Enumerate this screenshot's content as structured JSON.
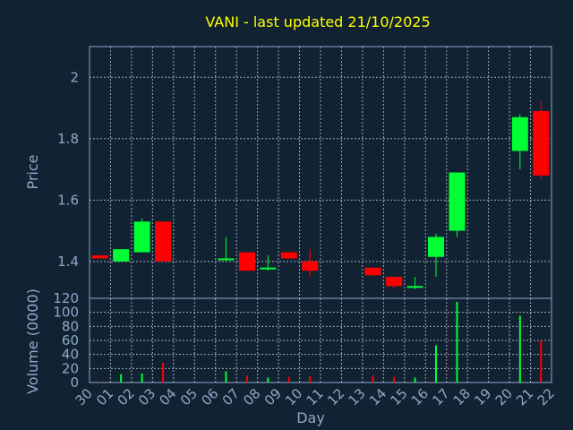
{
  "chart_data": [
    {
      "type": "candlestick",
      "title": "VANI - last updated 21/10/2025",
      "ylabel": "Price",
      "ylim": [
        1.28,
        2.1
      ],
      "y_ticks": [
        1.4,
        1.6,
        1.8,
        2.0
      ],
      "y_tick_labels": [
        "1.4",
        "1.6",
        "1.8",
        "2"
      ],
      "categories": [
        "30",
        "01",
        "02",
        "03",
        "04",
        "05",
        "06",
        "07",
        "08",
        "09",
        "10",
        "11",
        "12",
        "13",
        "14",
        "15",
        "16",
        "17",
        "18",
        "19",
        "20",
        "21",
        "22"
      ],
      "candles": [
        {
          "day": "30",
          "open": 1.42,
          "close": 1.41,
          "high": 1.42,
          "low": 1.41
        },
        {
          "day": "01",
          "open": 1.4,
          "close": 1.44,
          "high": 1.44,
          "low": 1.4
        },
        {
          "day": "02",
          "open": 1.43,
          "close": 1.53,
          "high": 1.54,
          "low": 1.43
        },
        {
          "day": "03",
          "open": 1.53,
          "close": 1.4,
          "high": 1.53,
          "low": 1.4
        },
        {
          "day": "06",
          "open": 1.41,
          "close": 1.41,
          "high": 1.48,
          "low": 1.4
        },
        {
          "day": "07",
          "open": 1.43,
          "close": 1.37,
          "high": 1.43,
          "low": 1.37
        },
        {
          "day": "08",
          "open": 1.38,
          "close": 1.38,
          "high": 1.42,
          "low": 1.37
        },
        {
          "day": "09",
          "open": 1.43,
          "close": 1.41,
          "high": 1.43,
          "low": 1.41
        },
        {
          "day": "10",
          "open": 1.4,
          "close": 1.37,
          "high": 1.44,
          "low": 1.35
        },
        {
          "day": "13",
          "open": 1.38,
          "close": 1.355,
          "high": 1.38,
          "low": 1.355
        },
        {
          "day": "14",
          "open": 1.35,
          "close": 1.32,
          "high": 1.35,
          "low": 1.31
        },
        {
          "day": "15",
          "open": 1.32,
          "close": 1.32,
          "high": 1.35,
          "low": 1.31
        },
        {
          "day": "16",
          "open": 1.415,
          "close": 1.48,
          "high": 1.49,
          "low": 1.35
        },
        {
          "day": "17",
          "open": 1.5,
          "close": 1.69,
          "high": 1.69,
          "low": 1.48
        },
        {
          "day": "20",
          "open": 1.76,
          "close": 1.87,
          "high": 1.88,
          "low": 1.7
        },
        {
          "day": "21",
          "open": 1.89,
          "close": 1.68,
          "high": 1.92,
          "low": 1.67
        }
      ],
      "up_color": "#00ff33",
      "down_color": "#ff0000",
      "grid": true
    },
    {
      "type": "bar",
      "ylabel": "Volume (0000)",
      "xlabel": "Day",
      "ylim": [
        0,
        120
      ],
      "y_ticks": [
        0,
        20,
        40,
        60,
        80,
        100,
        120
      ],
      "y_tick_labels": [
        "0",
        "20",
        "40",
        "60",
        "80",
        "100",
        "120"
      ],
      "categories": [
        "30",
        "01",
        "02",
        "03",
        "04",
        "05",
        "06",
        "07",
        "08",
        "09",
        "10",
        "11",
        "12",
        "13",
        "14",
        "15",
        "16",
        "17",
        "18",
        "19",
        "20",
        "21",
        "22"
      ],
      "bars": [
        {
          "day": "30",
          "value": 1,
          "dir": "down"
        },
        {
          "day": "01",
          "value": 12,
          "dir": "up"
        },
        {
          "day": "02",
          "value": 13,
          "dir": "up"
        },
        {
          "day": "03",
          "value": 28,
          "dir": "down"
        },
        {
          "day": "06",
          "value": 16,
          "dir": "up"
        },
        {
          "day": "07",
          "value": 10,
          "dir": "down"
        },
        {
          "day": "08",
          "value": 7,
          "dir": "up"
        },
        {
          "day": "09",
          "value": 8,
          "dir": "down"
        },
        {
          "day": "10",
          "value": 9,
          "dir": "down"
        },
        {
          "day": "13",
          "value": 10,
          "dir": "down"
        },
        {
          "day": "14",
          "value": 8,
          "dir": "down"
        },
        {
          "day": "15",
          "value": 7,
          "dir": "up"
        },
        {
          "day": "16",
          "value": 53,
          "dir": "up"
        },
        {
          "day": "17",
          "value": 115,
          "dir": "up"
        },
        {
          "day": "20",
          "value": 95,
          "dir": "up"
        },
        {
          "day": "21",
          "value": 60,
          "dir": "down"
        }
      ],
      "grid": true
    }
  ]
}
